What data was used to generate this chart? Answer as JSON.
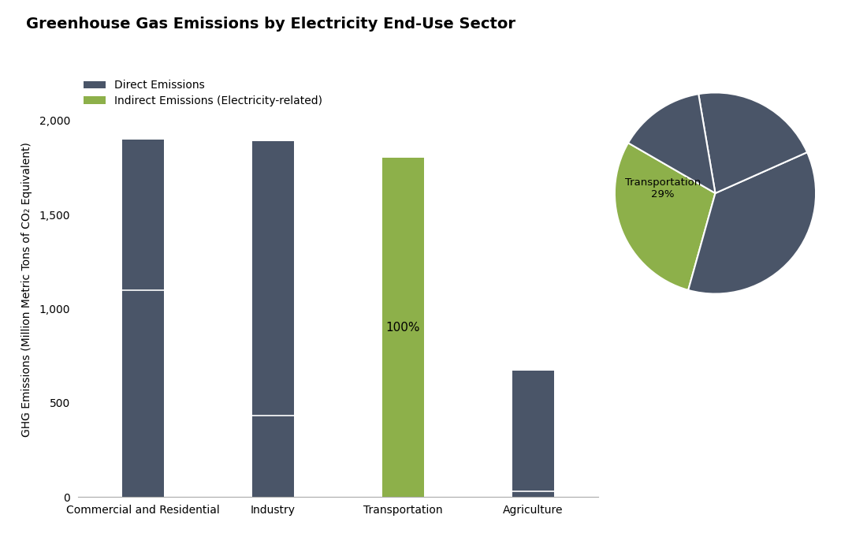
{
  "title": "Greenhouse Gas Emissions by Electricity End-Use Sector",
  "categories": [
    "Commercial and Residential",
    "Industry",
    "Transportation",
    "Agriculture"
  ],
  "direct_emissions": [
    1100,
    430,
    0,
    30
  ],
  "indirect_emissions": [
    800,
    1460,
    1800,
    640
  ],
  "ylabel": "GHG Emissions (Million Metric Tons of CO₂ Equivalent)",
  "ylim": [
    0,
    2200
  ],
  "yticks": [
    0,
    500,
    1000,
    1500,
    2000
  ],
  "legend_direct": "Direct Emissions",
  "legend_indirect": "Indirect Emissions (Electricity-related)",
  "pie_sizes": [
    29,
    36,
    21,
    14
  ],
  "pie_colors": [
    "#8db04a",
    "#4a5568",
    "#4a5568",
    "#4a5568"
  ],
  "background_color": "#ffffff",
  "dark_color": "#4a5568",
  "green_color": "#8db04a",
  "title_fontsize": 14,
  "axis_fontsize": 10,
  "legend_fontsize": 10,
  "transport_label": "100%",
  "pie_transport_label": "Transportation\n29%"
}
